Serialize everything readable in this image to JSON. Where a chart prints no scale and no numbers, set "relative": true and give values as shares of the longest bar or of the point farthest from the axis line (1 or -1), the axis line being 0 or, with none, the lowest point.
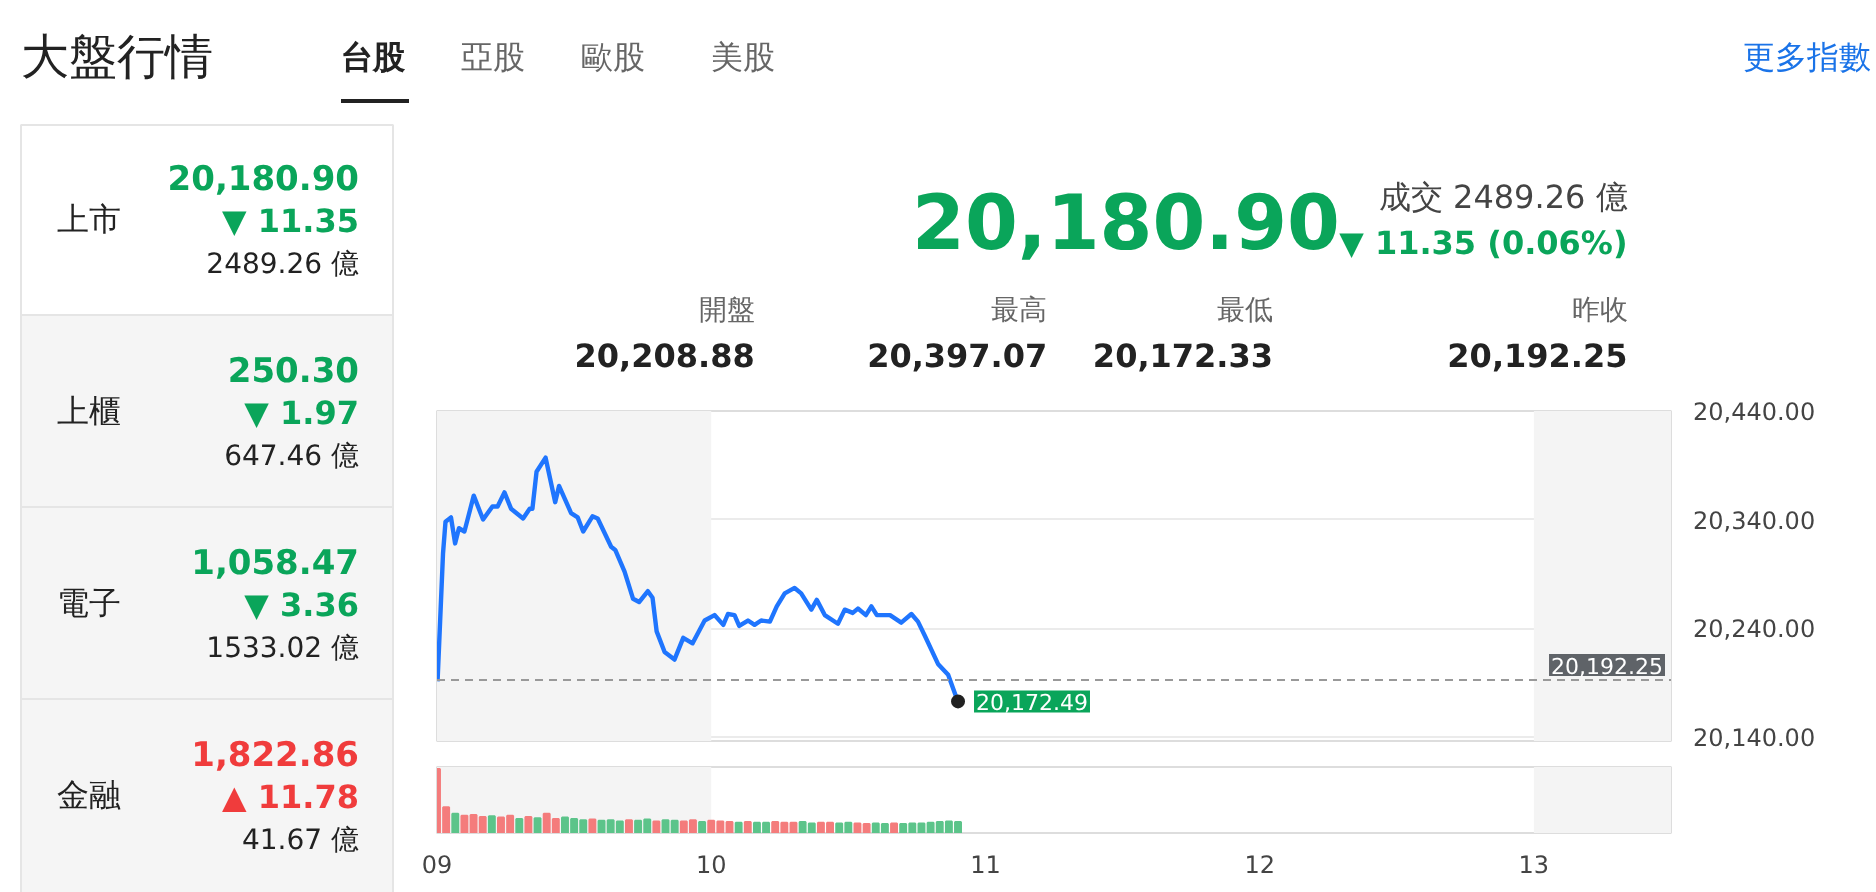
{
  "chart_data": [
    {
      "type": "other",
      "title": "大盤行情",
      "annotations": [
        "台股",
        "亞股",
        "歐股",
        "美股",
        "更多指數"
      ]
    },
    {
      "type": "other",
      "annotations": [
        "上市",
        "20,180.90",
        "▼ 11.35",
        "2489.26 億",
        "上櫃",
        "250.30",
        "▼ 1.97",
        "647.46 億",
        "電子",
        "1,058.47",
        "▼ 3.36",
        "1533.02 億",
        "金融",
        "1,822.86",
        "▲ 11.78",
        "41.67 億"
      ]
    },
    {
      "type": "other",
      "annotations": [
        "20,180.90",
        "成交 2489.26 億",
        "▼ 11.35 (0.06%)",
        "開盤",
        "20,208.88",
        "最高",
        "20,397.07",
        "最低",
        "20,172.33",
        "昨收",
        "20,192.25"
      ]
    },
    {
      "type": "line",
      "x": [
        9.002,
        9.022,
        9.031,
        9.051,
        9.066,
        9.08,
        9.1,
        9.134,
        9.168,
        9.202,
        9.221,
        9.246,
        9.27,
        9.314,
        9.338,
        9.348,
        9.363,
        9.396,
        9.431,
        9.445,
        9.489,
        9.513,
        9.533,
        9.567,
        9.586,
        9.635,
        9.65,
        9.684,
        9.715,
        9.737,
        9.769,
        9.786,
        9.801,
        9.83,
        9.866,
        9.898,
        9.932,
        9.976,
        10.012,
        10.044,
        10.061,
        10.085,
        10.102,
        10.134,
        10.158,
        10.182,
        10.214,
        10.239,
        10.268,
        10.304,
        10.328,
        10.365,
        10.385,
        10.414,
        10.462,
        10.487,
        10.516,
        10.535,
        10.564,
        10.584,
        10.604,
        10.652,
        10.693,
        10.73,
        10.754,
        10.779,
        10.827,
        10.864,
        10.9
      ],
      "series": [
        {
          "color": "#1f75fe",
          "values": [
            20191,
            20309,
            20338,
            20342,
            20318,
            20332,
            20329,
            20362,
            20340,
            20352,
            20352,
            20365,
            20350,
            20341,
            20350,
            20350,
            20384,
            20397,
            20356,
            20371,
            20346,
            20342,
            20329,
            20343,
            20341,
            20315,
            20312,
            20292,
            20267,
            20264,
            20274,
            20268,
            20237,
            20218,
            20211,
            20231,
            20226,
            20247,
            20252,
            20243,
            20253,
            20252,
            20242,
            20247,
            20243,
            20247,
            20246,
            20260,
            20272,
            20277,
            20272,
            20257,
            20266,
            20252,
            20244,
            20257,
            20254,
            20258,
            20252,
            20260,
            20252,
            20252,
            20245,
            20253,
            20246,
            20233,
            20207,
            20197,
            20172
          ]
        }
      ],
      "xlim": [
        9,
        13.5
      ],
      "ylim": [
        20136,
        20440
      ],
      "yticks": [
        {
          "value": 20140,
          "label": "20,140.00"
        },
        {
          "value": 20240,
          "label": "20,240.00"
        },
        {
          "value": 20340,
          "label": "20,340.00"
        },
        {
          "value": 20440,
          "label": "20,440.00"
        }
      ],
      "tick_labels": "y",
      "grid": "y",
      "bands": [
        {
          "axis": "x",
          "from": 9,
          "to": 10,
          "color": "#f4f4f4"
        },
        {
          "axis": "x",
          "from": 13,
          "to": 13.5,
          "color": "#f4f4f4"
        }
      ],
      "ref_lines": [
        {
          "axis": "y",
          "value": 20192.25,
          "label": "20,192.25",
          "color": "#999999",
          "line_style": "dashed"
        }
      ],
      "annotations": [
        {
          "text": "20,172.49",
          "x": 10.9,
          "y": 20172.49
        }
      ]
    },
    {
      "type": "bar",
      "relative": true,
      "x": [
        9.0,
        9.0333,
        9.0667,
        9.1,
        9.1333,
        9.1667,
        9.2,
        9.2333,
        9.2667,
        9.3,
        9.3333,
        9.3667,
        9.4,
        9.4333,
        9.4667,
        9.5,
        9.5333,
        9.5667,
        9.6,
        9.6333,
        9.6667,
        9.7,
        9.7333,
        9.7667,
        9.8,
        9.8333,
        9.8667,
        9.9,
        9.9333,
        9.9667,
        10.0,
        10.0333,
        10.0667,
        10.1,
        10.1333,
        10.1667,
        10.2,
        10.2333,
        10.2667,
        10.3,
        10.3333,
        10.3667,
        10.4,
        10.4333,
        10.4667,
        10.5,
        10.5333,
        10.5667,
        10.6,
        10.6333,
        10.6667,
        10.7,
        10.7333,
        10.7667,
        10.8,
        10.8333,
        10.8667,
        10.9
      ],
      "values": [
        1.0,
        0.4,
        0.3,
        0.27,
        0.28,
        0.25,
        0.26,
        0.24,
        0.27,
        0.22,
        0.25,
        0.23,
        0.3,
        0.22,
        0.24,
        0.22,
        0.2,
        0.21,
        0.19,
        0.2,
        0.18,
        0.2,
        0.19,
        0.21,
        0.18,
        0.2,
        0.19,
        0.18,
        0.2,
        0.17,
        0.19,
        0.18,
        0.17,
        0.16,
        0.17,
        0.16,
        0.16,
        0.17,
        0.16,
        0.16,
        0.17,
        0.15,
        0.16,
        0.16,
        0.15,
        0.16,
        0.15,
        0.14,
        0.15,
        0.14,
        0.15,
        0.14,
        0.15,
        0.15,
        0.16,
        0.17,
        0.18,
        0.17
      ],
      "colors": [
        "#f47c7c",
        "#f47c7c",
        "#5cc48a",
        "#f47c7c",
        "#f47c7c",
        "#f47c7c",
        "#5cc48a",
        "#f47c7c",
        "#f47c7c",
        "#5cc48a",
        "#f47c7c",
        "#5cc48a",
        "#f47c7c",
        "#f47c7c",
        "#5cc48a",
        "#5cc48a",
        "#5cc48a",
        "#f47c7c",
        "#5cc48a",
        "#5cc48a",
        "#5cc48a",
        "#f47c7c",
        "#5cc48a",
        "#5cc48a",
        "#f47c7c",
        "#5cc48a",
        "#5cc48a",
        "#f47c7c",
        "#f47c7c",
        "#5cc48a",
        "#f47c7c",
        "#f47c7c",
        "#f47c7c",
        "#5cc48a",
        "#f47c7c",
        "#5cc48a",
        "#5cc48a",
        "#f47c7c",
        "#f47c7c",
        "#f47c7c",
        "#5cc48a",
        "#5cc48a",
        "#f47c7c",
        "#f47c7c",
        "#5cc48a",
        "#5cc48a",
        "#f47c7c",
        "#f47c7c",
        "#5cc48a",
        "#5cc48a",
        "#f47c7c",
        "#5cc48a",
        "#5cc48a",
        "#5cc48a",
        "#5cc48a",
        "#5cc48a",
        "#5cc48a",
        "#5cc48a"
      ],
      "xlim": [
        9,
        13.5
      ],
      "xticks": [
        {
          "value": 9,
          "label": "09"
        },
        {
          "value": 10,
          "label": "10"
        },
        11,
        12,
        13
      ],
      "tick_labels": "x",
      "bands": [
        {
          "axis": "x",
          "from": 9,
          "to": 10,
          "color": "#f4f4f4"
        },
        {
          "axis": "x",
          "from": 13,
          "to": 13.5,
          "color": "#f4f4f4"
        }
      ]
    }
  ]
}
